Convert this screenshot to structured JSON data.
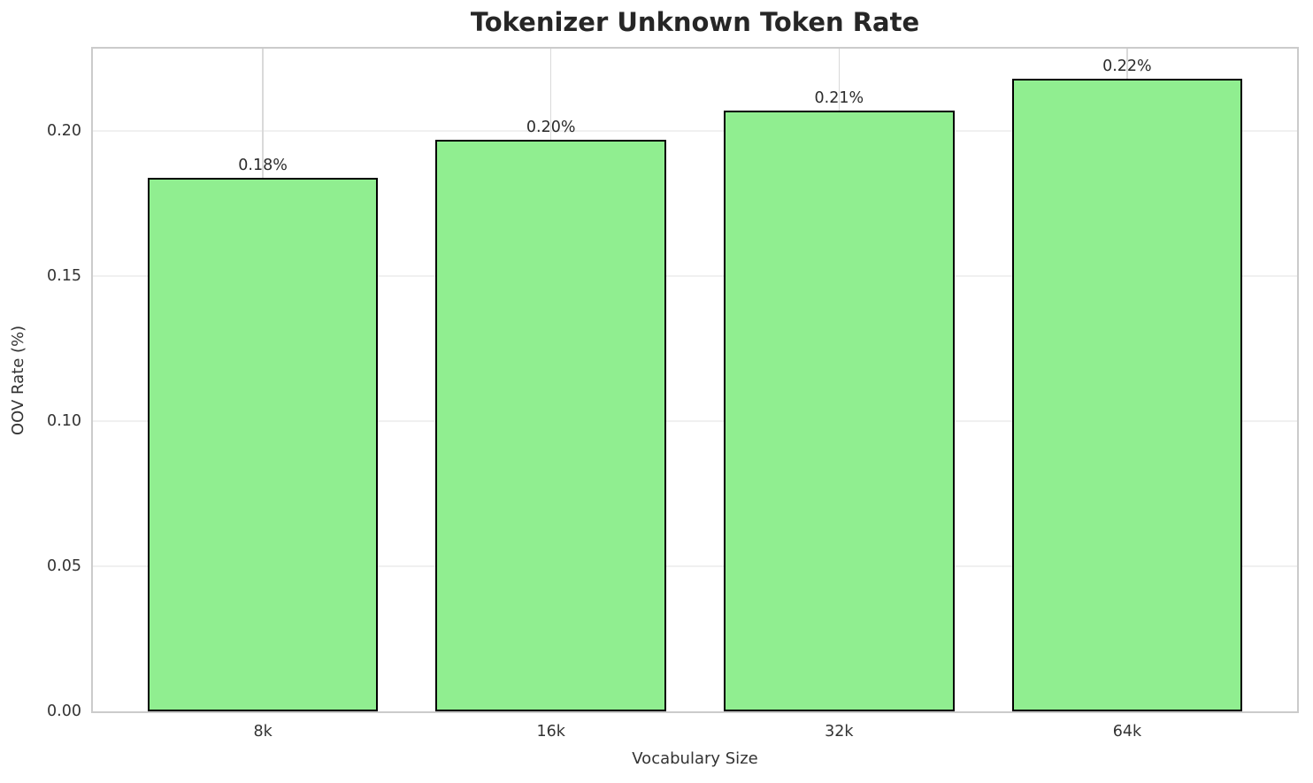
{
  "chart_data": {
    "type": "bar",
    "title": "Tokenizer Unknown Token Rate",
    "xlabel": "Vocabulary Size",
    "ylabel": "OOV Rate (%)",
    "categories": [
      "8k",
      "16k",
      "32k",
      "64k"
    ],
    "values": [
      0.184,
      0.197,
      0.207,
      0.218
    ],
    "bar_labels": [
      "0.18%",
      "0.20%",
      "0.21%",
      "0.22%"
    ],
    "ylim": [
      0,
      0.2285
    ],
    "xlim": [
      -0.59,
      3.59
    ],
    "bar_width": 0.8,
    "yticks": [
      0.0,
      0.05,
      0.1,
      0.15,
      0.2
    ],
    "ytick_labels": [
      "0.00",
      "0.05",
      "0.10",
      "0.15",
      "0.20"
    ],
    "grid": true,
    "legend": "none",
    "colors": {
      "bar_fill": "#90EE90",
      "bar_edge": "#000000",
      "grid_horizontal": "#f0f0f0",
      "grid_vertical": "#d9d9d9",
      "spine": "#cbcbcb",
      "title_text": "#262626",
      "tick_text": "#333333",
      "background": "#ffffff"
    }
  }
}
